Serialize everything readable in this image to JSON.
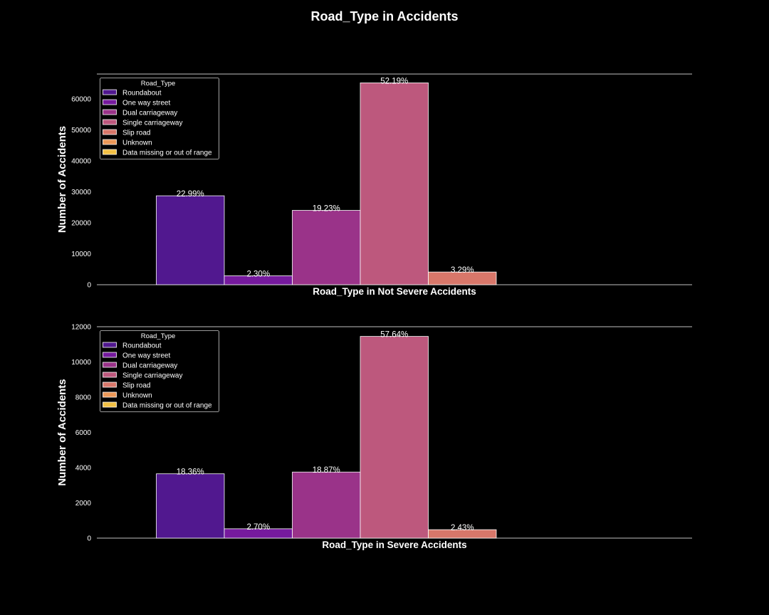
{
  "figure": {
    "title": "Road_Type in Accidents",
    "background": "#000000",
    "palette": {
      "Roundabout": "#51188f",
      "One way street": "#761a9e",
      "Dual carriageway": "#9a3389",
      "Single carriageway": "#bd587d",
      "Slip road": "#d8776a",
      "Unknown": "#ec9858",
      "Data missing or out of range": "#f2c044"
    }
  },
  "chart_data": [
    {
      "type": "bar",
      "xlabel": "Road_Type in Not Severe Accidents",
      "ylabel": "Number of Accidents",
      "ylim": [
        0,
        68000
      ],
      "yticks": [
        0,
        10000,
        20000,
        30000,
        40000,
        50000,
        60000
      ],
      "legend": {
        "title": "Road_Type",
        "placement": "top-left"
      },
      "grid": false,
      "series": [
        {
          "name": "Roundabout",
          "value": 28700,
          "label": "22.99%"
        },
        {
          "name": "One way street",
          "value": 2870,
          "label": "2.30%"
        },
        {
          "name": "Dual carriageway",
          "value": 24000,
          "label": "19.23%"
        },
        {
          "name": "Single carriageway",
          "value": 65150,
          "label": "52.19%"
        },
        {
          "name": "Slip road",
          "value": 4100,
          "label": "3.29%"
        },
        {
          "name": "Unknown",
          "value": 0,
          "label": ""
        },
        {
          "name": "Data missing or out of range",
          "value": 0,
          "label": ""
        }
      ]
    },
    {
      "type": "bar",
      "xlabel": "Road_Type in Severe Accidents",
      "ylabel": "Number of Accidents",
      "ylim": [
        0,
        12000
      ],
      "yticks": [
        0,
        2000,
        4000,
        6000,
        8000,
        10000,
        12000
      ],
      "legend": {
        "title": "Road_Type",
        "placement": "top-left"
      },
      "grid": false,
      "series": [
        {
          "name": "Roundabout",
          "value": 3650,
          "label": "18.36%"
        },
        {
          "name": "One way street",
          "value": 530,
          "label": "2.70%"
        },
        {
          "name": "Dual carriageway",
          "value": 3750,
          "label": "18.87%"
        },
        {
          "name": "Single carriageway",
          "value": 11450,
          "label": "57.64%"
        },
        {
          "name": "Slip road",
          "value": 480,
          "label": "2.43%"
        },
        {
          "name": "Unknown",
          "value": 0,
          "label": ""
        },
        {
          "name": "Data missing or out of range",
          "value": 0,
          "label": ""
        }
      ]
    }
  ]
}
